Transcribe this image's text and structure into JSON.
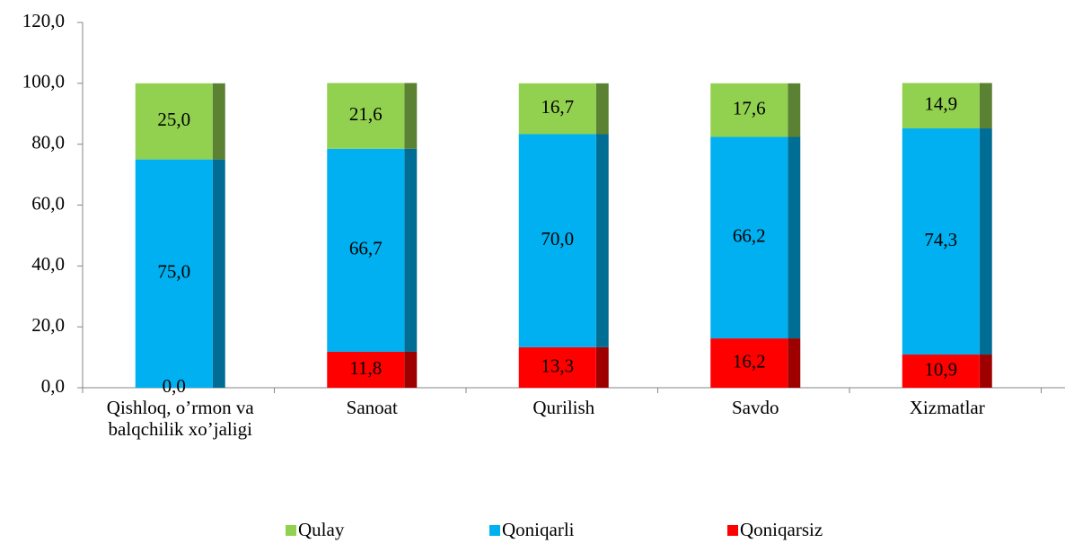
{
  "chart_data": {
    "type": "stacked_bar",
    "categories": [
      "Qishloq, o’rmon va balqchilik xo’jaligi",
      "Sanoat",
      "Qurilish",
      "Savdo",
      "Xizmatlar"
    ],
    "series": [
      {
        "name": "Qoniqarsiz",
        "color": "#ff0000",
        "values": [
          0.0,
          11.8,
          13.3,
          16.2,
          10.9
        ],
        "value_labels": [
          "0,0",
          "11,8",
          "13,3",
          "16,2",
          "10,9"
        ]
      },
      {
        "name": "Qoniqarli",
        "color": "#00b0f0",
        "values": [
          75.0,
          66.7,
          70.0,
          66.2,
          74.3
        ],
        "value_labels": [
          "75,0",
          "66,7",
          "70,0",
          "66,2",
          "74,3"
        ]
      },
      {
        "name": "Qulay",
        "color": "#92d050",
        "values": [
          25.0,
          21.6,
          16.7,
          17.6,
          14.9
        ],
        "value_labels": [
          "25,0",
          "21,6",
          "16,7",
          "17,6",
          "14,9"
        ]
      }
    ],
    "ylim": [
      0,
      120
    ],
    "yticks": [
      {
        "value": 0,
        "label": "0,0"
      },
      {
        "value": 20,
        "label": "20,0"
      },
      {
        "value": 40,
        "label": "40,0"
      },
      {
        "value": 60,
        "label": "60,0"
      },
      {
        "value": 80,
        "label": "80,0"
      },
      {
        "value": 100,
        "label": "100,0"
      },
      {
        "value": 120,
        "label": "120,0"
      }
    ],
    "legend": "bottom"
  }
}
